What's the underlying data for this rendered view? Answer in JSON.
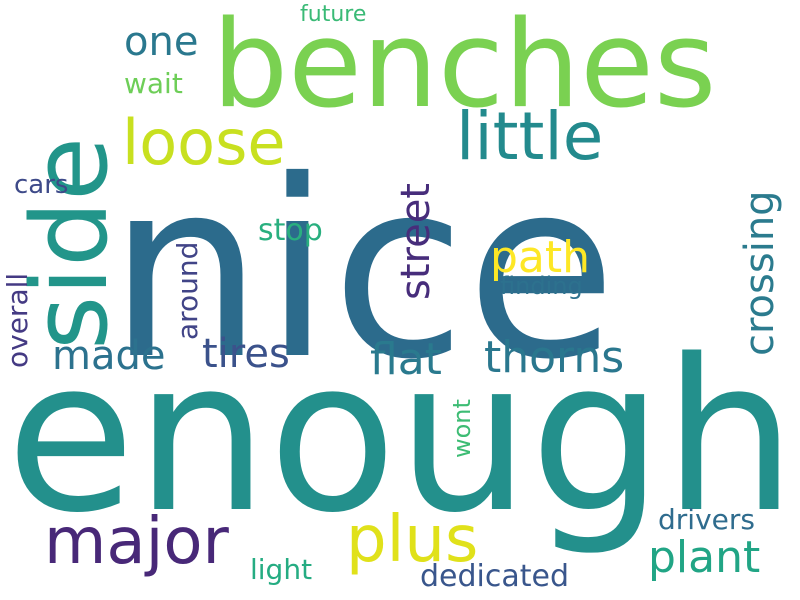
{
  "words": {
    "nice": {
      "text": "nice",
      "color": "#2c6b8c"
    },
    "enough": {
      "text": "enough",
      "color": "#23908c"
    },
    "benches": {
      "text": "benches",
      "color": "#7ad151"
    },
    "side": {
      "text": "side",
      "color": "#22958a"
    },
    "loose": {
      "text": "loose",
      "color": "#c8e020"
    },
    "little": {
      "text": "little",
      "color": "#238a8d"
    },
    "major": {
      "text": "major",
      "color": "#482878"
    },
    "plus": {
      "text": "plus",
      "color": "#e0e11a"
    },
    "one": {
      "text": "one",
      "color": "#2a788e"
    },
    "street": {
      "text": "street",
      "color": "#472d7b"
    },
    "path": {
      "text": "path",
      "color": "#fde725"
    },
    "crossing": {
      "text": "crossing",
      "color": "#2b7b8e"
    },
    "made": {
      "text": "made",
      "color": "#2c728e"
    },
    "tires": {
      "text": "tires",
      "color": "#3b528b"
    },
    "flat": {
      "text": "flat",
      "color": "#2a7a8e"
    },
    "thorns": {
      "text": "thorns",
      "color": "#2a778e"
    },
    "plant": {
      "text": "plant",
      "color": "#21a585"
    },
    "drivers": {
      "text": "drivers",
      "color": "#2f6c8e"
    },
    "dedicated": {
      "text": "dedicated",
      "color": "#39568c"
    },
    "light": {
      "text": "light",
      "color": "#25ac82"
    },
    "future": {
      "text": "future",
      "color": "#3aba76"
    },
    "wait": {
      "text": "wait",
      "color": "#6ece58"
    },
    "cars": {
      "text": "cars",
      "color": "#3e4a89"
    },
    "stop": {
      "text": "stop",
      "color": "#29af7f"
    },
    "finding": {
      "text": "finding",
      "color": "#2d718e"
    },
    "around": {
      "text": "around",
      "color": "#414487"
    },
    "overall": {
      "text": "overall",
      "color": "#443a83"
    },
    "wont": {
      "text": "wont",
      "color": "#3dbc74"
    }
  }
}
